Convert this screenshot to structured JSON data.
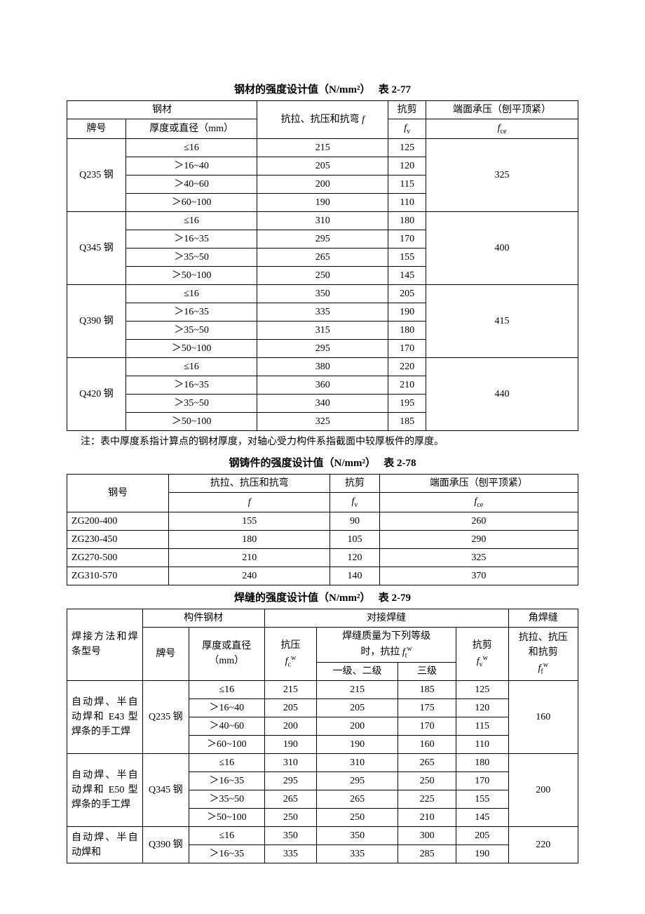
{
  "table1": {
    "title_prefix": "钢材的强度设计值",
    "unit": "（N/mm²）",
    "table_number": "表 2-77",
    "header": {
      "steel": "钢材",
      "grade": "牌号",
      "thickness": "厚度或直径（mm）",
      "f_label": "抗拉、抗压和抗弯",
      "f_symbol": "f",
      "fv_label": "抗剪",
      "fv_symbol": "fv",
      "fce_label": "端面承压（刨平顶紧）",
      "fce_symbol": "fce"
    },
    "groups": [
      {
        "grade": "Q235 钢",
        "fce": "325",
        "rows": [
          {
            "t": "≤16",
            "f": "215",
            "fv": "125"
          },
          {
            "t": "＞16~40",
            "f": "205",
            "fv": "120"
          },
          {
            "t": "＞40~60",
            "f": "200",
            "fv": "115"
          },
          {
            "t": "＞60~100",
            "f": "190",
            "fv": "110"
          }
        ]
      },
      {
        "grade": "Q345 钢",
        "fce": "400",
        "rows": [
          {
            "t": "≤16",
            "f": "310",
            "fv": "180"
          },
          {
            "t": "＞16~35",
            "f": "295",
            "fv": "170"
          },
          {
            "t": "＞35~50",
            "f": "265",
            "fv": "155"
          },
          {
            "t": "＞50~100",
            "f": "250",
            "fv": "145"
          }
        ]
      },
      {
        "grade": "Q390 钢",
        "fce": "415",
        "rows": [
          {
            "t": "≤16",
            "f": "350",
            "fv": "205"
          },
          {
            "t": "＞16~35",
            "f": "335",
            "fv": "190"
          },
          {
            "t": "＞35~50",
            "f": "315",
            "fv": "180"
          },
          {
            "t": "＞50~100",
            "f": "295",
            "fv": "170"
          }
        ]
      },
      {
        "grade": "Q420 钢",
        "fce": "440",
        "rows": [
          {
            "t": "≤16",
            "f": "380",
            "fv": "220"
          },
          {
            "t": "＞16~35",
            "f": "360",
            "fv": "210"
          },
          {
            "t": "＞35~50",
            "f": "340",
            "fv": "195"
          },
          {
            "t": "＞50~100",
            "f": "325",
            "fv": "185"
          }
        ]
      }
    ],
    "note": "注：表中厚度系指计算点的钢材厚度，对轴心受力构件系指截面中较厚板件的厚度。"
  },
  "table2": {
    "title_prefix": "钢铸件的强度设计值",
    "unit": "（N/mm²）",
    "table_number": "表 2-78",
    "header": {
      "grade": "钢号",
      "f_label": "抗拉、抗压和抗弯",
      "f_symbol": "f",
      "fv_label": "抗剪",
      "fv_symbol": "fv",
      "fce_label": "端面承压（刨平顶紧）",
      "fce_symbol": "fce"
    },
    "rows": [
      {
        "grade": "ZG200-400",
        "f": "155",
        "fv": "90",
        "fce": "260"
      },
      {
        "grade": "ZG230-450",
        "f": "180",
        "fv": "105",
        "fce": "290"
      },
      {
        "grade": "ZG270-500",
        "f": "210",
        "fv": "120",
        "fce": "325"
      },
      {
        "grade": "ZG310-570",
        "f": "240",
        "fv": "140",
        "fce": "370"
      }
    ]
  },
  "table3": {
    "title_prefix": "焊缝的强度设计值",
    "unit": "（N/mm²）",
    "table_number": "表 2-79",
    "header": {
      "method": "焊接方法和\n焊条型号",
      "component": "构件钢材",
      "grade": "牌号",
      "thickness": "厚度或直径\n（mm）",
      "butt": "对接焊缝",
      "fillet": "角焊缝",
      "fc_label": "抗压",
      "fc_symbol": "fcw",
      "ft_header": "焊缝质量为下列等级\n时，抗拉 ftw",
      "ft_g1": "一级、二级",
      "ft_g3": "三级",
      "fv_label": "抗剪",
      "fv_symbol": "fvw",
      "ff_label": "抗拉、抗压\n和抗剪",
      "ff_symbol": "ffw"
    },
    "groups": [
      {
        "method": "自动焊、半自动焊和 E43 型焊条的手工焊",
        "grade": "Q235 钢",
        "ff": "160",
        "rows": [
          {
            "t": "≤16",
            "fc": "215",
            "ft1": "215",
            "ft3": "185",
            "fv": "125"
          },
          {
            "t": "＞16~40",
            "fc": "205",
            "ft1": "205",
            "ft3": "175",
            "fv": "120"
          },
          {
            "t": "＞40~60",
            "fc": "200",
            "ft1": "200",
            "ft3": "170",
            "fv": "115"
          },
          {
            "t": "＞60~100",
            "fc": "190",
            "ft1": "190",
            "ft3": "160",
            "fv": "110"
          }
        ]
      },
      {
        "method": "自动焊、半自动焊和 E50 型焊条的手工焊",
        "grade": "Q345 钢",
        "ff": "200",
        "rows": [
          {
            "t": "≤16",
            "fc": "310",
            "ft1": "310",
            "ft3": "265",
            "fv": "180"
          },
          {
            "t": "＞16~35",
            "fc": "295",
            "ft1": "295",
            "ft3": "250",
            "fv": "170"
          },
          {
            "t": "＞35~50",
            "fc": "265",
            "ft1": "265",
            "ft3": "225",
            "fv": "155"
          },
          {
            "t": "＞50~100",
            "fc": "250",
            "ft1": "250",
            "ft3": "210",
            "fv": "145"
          }
        ]
      },
      {
        "method": "自动焊、半自动焊和",
        "grade": "Q390 钢",
        "ff": "220",
        "rows": [
          {
            "t": "≤16",
            "fc": "350",
            "ft1": "350",
            "ft3": "300",
            "fv": "205"
          },
          {
            "t": "＞16~35",
            "fc": "335",
            "ft1": "335",
            "ft3": "285",
            "fv": "190"
          }
        ]
      }
    ]
  }
}
